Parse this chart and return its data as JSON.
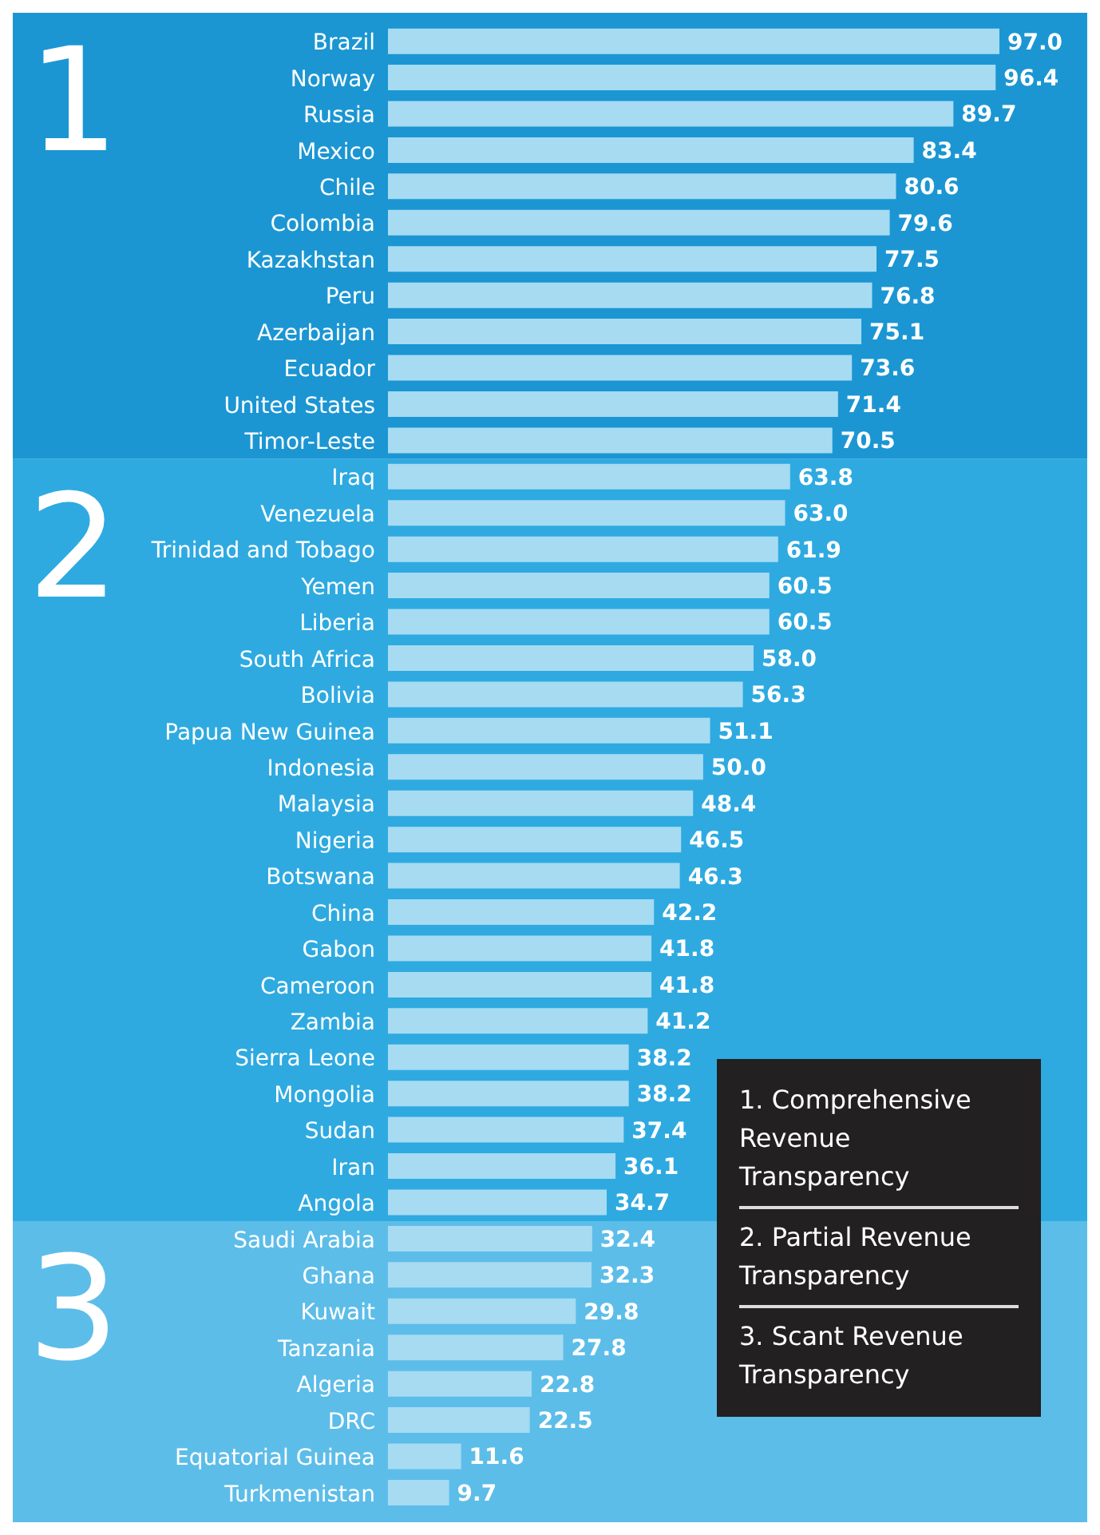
{
  "chart_data": {
    "type": "bar",
    "orientation": "horizontal",
    "color": "#a6dbf2",
    "value_labels": [
      "97.0",
      "96.4",
      "89.7",
      "83.4",
      "80.6",
      "79.6",
      "77.5",
      "76.8",
      "75.1",
      "73.6",
      "71.4",
      "70.5",
      "63.8",
      "63.0",
      "61.9",
      "60.5",
      "60.5",
      "58.0",
      "56.3",
      "51.1",
      "50.0",
      "48.4",
      "46.5",
      "46.3",
      "42.2",
      "41.8",
      "41.8",
      "41.2",
      "38.2",
      "38.2",
      "37.4",
      "36.1",
      "34.7",
      "32.4",
      "32.3",
      "29.8",
      "27.8",
      "22.8",
      "22.5",
      "11.6",
      "9.7"
    ],
    "categories": [
      "Brazil",
      "Norway",
      "Russia",
      "Mexico",
      "Chile",
      "Colombia",
      "Kazakhstan",
      "Peru",
      "Azerbaijan",
      "Ecuador",
      "United States",
      "Timor-Leste",
      "Iraq",
      "Venezuela",
      "Trinidad and Tobago",
      "Yemen",
      "Liberia",
      "South Africa",
      "Bolivia",
      "Papua New Guinea",
      "Indonesia",
      "Malaysia",
      "Nigeria",
      "Botswana",
      "China",
      "Gabon",
      "Cameroon",
      "Zambia",
      "Sierra Leone",
      "Mongolia",
      "Sudan",
      "Iran",
      "Angola",
      "Saudi Arabia",
      "Ghana",
      "Kuwait",
      "Tanzania",
      "Algeria",
      "DRC",
      "Equatorial Guinea",
      "Turkmenistan"
    ],
    "values": [
      97.0,
      96.4,
      89.7,
      83.4,
      80.6,
      79.6,
      77.5,
      76.8,
      75.1,
      73.6,
      71.4,
      70.5,
      63.8,
      63.0,
      61.9,
      60.5,
      60.5,
      58.0,
      56.3,
      51.1,
      50.0,
      48.4,
      46.5,
      46.3,
      42.2,
      41.8,
      41.8,
      41.2,
      38.2,
      38.2,
      37.4,
      36.1,
      34.7,
      32.4,
      32.3,
      29.8,
      27.8,
      22.8,
      22.5,
      11.6,
      9.7
    ],
    "bands": [
      {
        "axis": "y",
        "from": "Brazil",
        "to": "Timor-Leste",
        "label": "1",
        "color": "#1b96d3"
      },
      {
        "axis": "y",
        "from": "Iraq",
        "to": "Angola",
        "label": "2",
        "color": "#2eaae1"
      },
      {
        "axis": "y",
        "from": "Saudi Arabia",
        "to": "Turkmenistan",
        "label": "3",
        "color": "#5dbde9"
      }
    ],
    "annotations": [
      "1. Comprehensive Revenue Transparency",
      "2. Partial Revenue Transparency",
      "3. Scant Revenue Transparency"
    ]
  }
}
